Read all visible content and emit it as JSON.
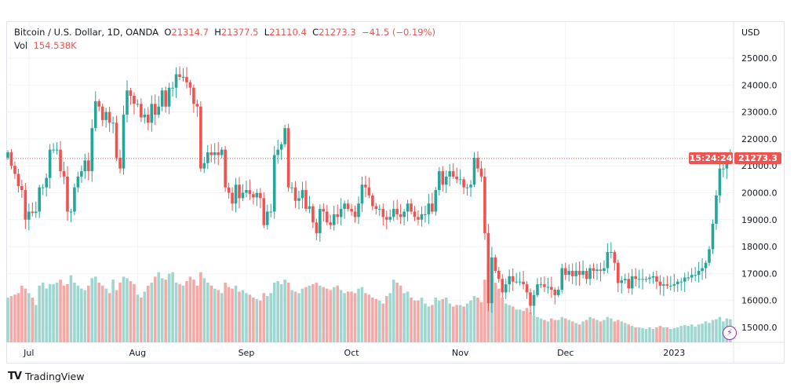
{
  "legend": {
    "symbol": "Bitcoin / U.S. Dollar, 1D, OANDA",
    "o_label": "O",
    "o": "21314.7",
    "h_label": "H",
    "h": "21377.5",
    "l_label": "L",
    "l": "21110.4",
    "c_label": "C",
    "c": "21273.3",
    "change": "−41.5 (−0.19%)",
    "vol_label": "Vol",
    "vol": "154.538K"
  },
  "last_price": "21273.3",
  "countdown": "15:24:24",
  "brand": "TradingView",
  "colors": {
    "up": "#26a69a",
    "down": "#ef5350",
    "up_vol": "#9fd6cf",
    "down_vol": "#f5a9a7",
    "grid": "#f0f3fa"
  },
  "chart_data": {
    "type": "candlestick",
    "currency": "USD",
    "ylim": [
      14500,
      25500
    ],
    "y_ticks": [
      "25000.0",
      "24000.0",
      "23000.0",
      "22000.0",
      "21000.0",
      "20000.0",
      "19000.0",
      "18000.0",
      "17000.0",
      "16000.0",
      "15000.0"
    ],
    "y_tick_values": [
      25000,
      24000,
      23000,
      22000,
      21000,
      20000,
      19000,
      18000,
      17000,
      16000,
      15000
    ],
    "x_ticks": [
      {
        "label": "Jul",
        "day": 6
      },
      {
        "label": "Aug",
        "day": 37
      },
      {
        "label": "Sep",
        "day": 68
      },
      {
        "label": "Oct",
        "day": 98
      },
      {
        "label": "Nov",
        "day": 129
      },
      {
        "label": "Dec",
        "day": 159
      },
      {
        "label": "2023",
        "day": 190
      }
    ],
    "start_open": 21300,
    "closes": [
      21500,
      21000,
      20700,
      20250,
      20100,
      19000,
      19300,
      19250,
      19300,
      20200,
      20200,
      20550,
      21600,
      21600,
      21600,
      20800,
      20600,
      19300,
      19300,
      20200,
      20600,
      20800,
      21200,
      20800,
      22400,
      23400,
      23200,
      22700,
      23000,
      22600,
      22600,
      21300,
      20900,
      22900,
      23800,
      23600,
      23300,
      23300,
      22800,
      22900,
      22600,
      23300,
      22900,
      23200,
      23800,
      23200,
      23900,
      23900,
      24400,
      24300,
      24300,
      24100,
      23900,
      23300,
      23200,
      20900,
      21100,
      21500,
      21400,
      21500,
      21400,
      21600,
      20200,
      20000,
      19600,
      20300,
      19800,
      20000,
      20100,
      19950,
      19830,
      19990,
      19800,
      18800,
      19300,
      19300,
      21400,
      21600,
      21800,
      22400,
      20200,
      20200,
      19700,
      19800,
      20100,
      19400,
      19500,
      18900,
      18500,
      19400,
      19300,
      18900,
      18800,
      19200,
      19100,
      19400,
      19600,
      19400,
      19300,
      19100,
      19600,
      20300,
      20200,
      19900,
      19500,
      19400,
      19400,
      19100,
      19000,
      19100,
      19400,
      19200,
      19100,
      19300,
      19600,
      19300,
      19100,
      19000,
      19200,
      19200,
      19600,
      19300,
      20100,
      20800,
      20300,
      20600,
      20800,
      20600,
      20500,
      20500,
      20200,
      20200,
      20300,
      21300,
      20900,
      20600,
      18500,
      15900,
      17600,
      17100,
      16800,
      16300,
      16600,
      16900,
      16700,
      16700,
      16700,
      16600,
      16300,
      15800,
      16200,
      16600,
      16600,
      16500,
      16500,
      16400,
      16200,
      16400,
      17200,
      16950,
      17100,
      16900,
      17100,
      16950,
      17100,
      16800,
      17200,
      17100,
      17150,
      17100,
      17200,
      17800,
      17800,
      17400,
      16650,
      16750,
      16800,
      16450,
      16900,
      16800,
      16800,
      16800,
      16800,
      16850,
      16900,
      16700,
      16550,
      16600,
      16550,
      16550,
      16600,
      16700,
      16700,
      16850,
      16850,
      16950,
      16950,
      17100,
      17200,
      17400,
      17900,
      18850,
      19900,
      20900,
      20900,
      21200,
      21273.3
    ],
    "volumes_k": [
      300,
      310,
      320,
      330,
      380,
      360,
      330,
      300,
      250,
      380,
      400,
      360,
      390,
      390,
      400,
      420,
      380,
      390,
      450,
      400,
      380,
      360,
      350,
      380,
      430,
      440,
      400,
      380,
      360,
      330,
      420,
      350,
      400,
      440,
      430,
      410,
      390,
      320,
      300,
      340,
      380,
      400,
      440,
      470,
      430,
      420,
      460,
      470,
      400,
      390,
      380,
      410,
      440,
      420,
      380,
      470,
      430,
      400,
      380,
      360,
      350,
      330,
      400,
      370,
      360,
      380,
      340,
      350,
      330,
      320,
      300,
      290,
      280,
      330,
      310,
      330,
      400,
      410,
      390,
      420,
      400,
      350,
      340,
      330,
      360,
      370,
      380,
      390,
      400,
      380,
      370,
      360,
      350,
      370,
      380,
      350,
      330,
      340,
      340,
      330,
      360,
      370,
      330,
      320,
      300,
      290,
      280,
      260,
      310,
      330,
      420,
      400,
      380,
      330,
      340,
      300,
      280,
      280,
      300,
      260,
      240,
      250,
      300,
      280,
      290,
      300,
      260,
      240,
      250,
      250,
      240,
      260,
      280,
      310,
      300,
      270,
      420,
      530,
      450,
      400,
      360,
      300,
      260,
      250,
      240,
      220,
      220,
      210,
      230,
      200,
      180,
      170,
      160,
      150,
      140,
      160,
      150,
      150,
      170,
      160,
      150,
      140,
      130,
      120,
      140,
      150,
      170,
      160,
      150,
      140,
      150,
      170,
      160,
      140,
      150,
      140,
      130,
      120,
      110,
      100,
      100,
      95,
      90,
      100,
      90,
      100,
      110,
      100,
      100,
      90,
      95,
      100,
      110,
      115,
      110,
      120,
      105,
      120,
      125,
      140,
      130,
      150,
      155,
      170,
      140,
      160,
      154.5
    ]
  }
}
